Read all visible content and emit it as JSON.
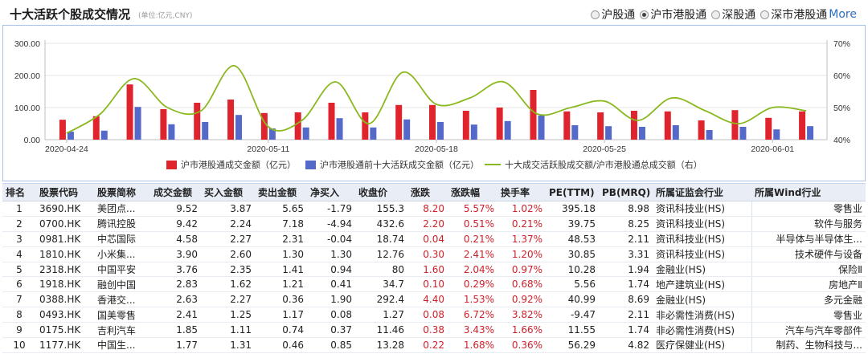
{
  "header": {
    "title": "十大活跃个股成交情况",
    "unit": "(单位:亿元,CNY)",
    "radios": [
      {
        "label": "沪股通",
        "checked": false
      },
      {
        "label": "沪市港股通",
        "checked": true
      },
      {
        "label": "深股通",
        "checked": false
      },
      {
        "label": "深市港股通",
        "checked": false
      }
    ],
    "more": "More"
  },
  "colors": {
    "red": "#e0242e",
    "blue": "#5469c8",
    "green": "#8ab81f",
    "frame": "#a9c1e6",
    "header_bg": "#e9eef6",
    "positive": "#d0202a"
  },
  "chart_data": {
    "type": "bar",
    "x_ticks": [
      "2020-04-24",
      "2020-05-11",
      "2020-05-18",
      "2020-05-25",
      "2020-06-01"
    ],
    "y_left_ticks": [
      "0.00",
      "100.00",
      "200.00",
      "300.00"
    ],
    "y_right_ticks": [
      "40%",
      "50%",
      "60%",
      "70%"
    ],
    "ylim_left": [
      0,
      300
    ],
    "ylim_right": [
      40,
      70
    ],
    "legend": [
      {
        "name": "沪市港股通成交金额（亿元）",
        "kind": "bar",
        "color": "#e0242e"
      },
      {
        "name": "沪市港股通前十大活跃成交金额（亿元）",
        "kind": "bar",
        "color": "#5469c8"
      },
      {
        "name": "十大成交活跃股成交额/沪市港股通总成交额（右）",
        "kind": "line",
        "color": "#8ab81f"
      }
    ],
    "legend_position": "bottom",
    "series": [
      {
        "name": "沪市港股通成交金额（亿元）",
        "axis": "left",
        "values": [
          62,
          73,
          172,
          95,
          115,
          125,
          83,
          85,
          115,
          85,
          108,
          108,
          90,
          100,
          155,
          88,
          85,
          90,
          88,
          60,
          92,
          68,
          88
        ]
      },
      {
        "name": "沪市港股通前十大活跃成交金额（亿元）",
        "axis": "left",
        "values": [
          25,
          28,
          102,
          48,
          55,
          77,
          35,
          38,
          67,
          38,
          63,
          55,
          47,
          58,
          75,
          45,
          42,
          40,
          45,
          30,
          40,
          32,
          42
        ]
      },
      {
        "name": "十大成交活跃股成交额/沪市港股通总成交额（右）",
        "axis": "right",
        "values": [
          42,
          48,
          59,
          50,
          49,
          63,
          44,
          46,
          58,
          45,
          61,
          51,
          53,
          58,
          48,
          50,
          52,
          46,
          53,
          49,
          45,
          50,
          49
        ]
      }
    ]
  },
  "table": {
    "columns": [
      "排名",
      "股票代码",
      "股票简称",
      "成交金额",
      "买入金额",
      "卖出金额",
      "净买入",
      "收盘价",
      "涨跌",
      "涨跌幅",
      "换手率",
      "PE(TTM)",
      "PB(MRQ)",
      "所属证监会行业",
      "所属Wind行业"
    ],
    "rows": [
      [
        "1",
        "3690.HK",
        "美团点...",
        "9.52",
        "3.87",
        "5.65",
        "-1.79",
        "155.3",
        "8.20",
        "5.57%",
        "1.02%",
        "395.18",
        "8.98",
        "资讯科技业(HS)",
        "零售业"
      ],
      [
        "2",
        "0700.HK",
        "腾讯控股",
        "9.42",
        "2.24",
        "7.18",
        "-4.94",
        "432.6",
        "2.20",
        "0.51%",
        "0.21%",
        "39.75",
        "8.25",
        "资讯科技业(HS)",
        "软件与服务"
      ],
      [
        "3",
        "0981.HK",
        "中芯国际",
        "4.58",
        "2.27",
        "2.31",
        "-0.04",
        "18.74",
        "0.04",
        "0.21%",
        "1.37%",
        "48.53",
        "2.11",
        "资讯科技业(HS)",
        "半导体与半导体生..."
      ],
      [
        "4",
        "1810.HK",
        "小米集...",
        "3.90",
        "2.60",
        "1.30",
        "1.30",
        "12.76",
        "0.30",
        "2.41%",
        "1.20%",
        "30.85",
        "3.31",
        "资讯科技业(HS)",
        "技术硬件与设备"
      ],
      [
        "5",
        "2318.HK",
        "中国平安",
        "3.76",
        "2.35",
        "1.41",
        "0.94",
        "80",
        "1.60",
        "2.04%",
        "0.97%",
        "10.28",
        "1.94",
        "金融业(HS)",
        "保险Ⅱ"
      ],
      [
        "6",
        "1918.HK",
        "融创中国",
        "2.83",
        "1.62",
        "1.21",
        "0.41",
        "34.7",
        "0.10",
        "0.29%",
        "0.68%",
        "5.56",
        "1.74",
        "地产建筑业(HS)",
        "房地产Ⅱ"
      ],
      [
        "7",
        "0388.HK",
        "香港交...",
        "2.63",
        "2.27",
        "0.36",
        "1.90",
        "292.4",
        "4.40",
        "1.53%",
        "0.92%",
        "40.99",
        "8.69",
        "金融业(HS)",
        "多元金融"
      ],
      [
        "8",
        "0493.HK",
        "国美零售",
        "2.41",
        "1.25",
        "1.17",
        "0.08",
        "1.27",
        "0.08",
        "6.72%",
        "3.82%",
        "-9.47",
        "2.11",
        "非必需性消费(HS)",
        "零售业"
      ],
      [
        "9",
        "0175.HK",
        "吉利汽车",
        "1.85",
        "1.11",
        "0.74",
        "0.37",
        "11.46",
        "0.38",
        "3.43%",
        "1.66%",
        "11.55",
        "1.74",
        "非必需性消费(HS)",
        "汽车与汽车零部件"
      ],
      [
        "10",
        "1177.HK",
        "中国生...",
        "1.77",
        "1.31",
        "0.46",
        "0.85",
        "13.28",
        "0.22",
        "1.68%",
        "0.36%",
        "56.29",
        "4.82",
        "医疗保健业(HS)",
        "制药、生物科技与..."
      ]
    ]
  }
}
